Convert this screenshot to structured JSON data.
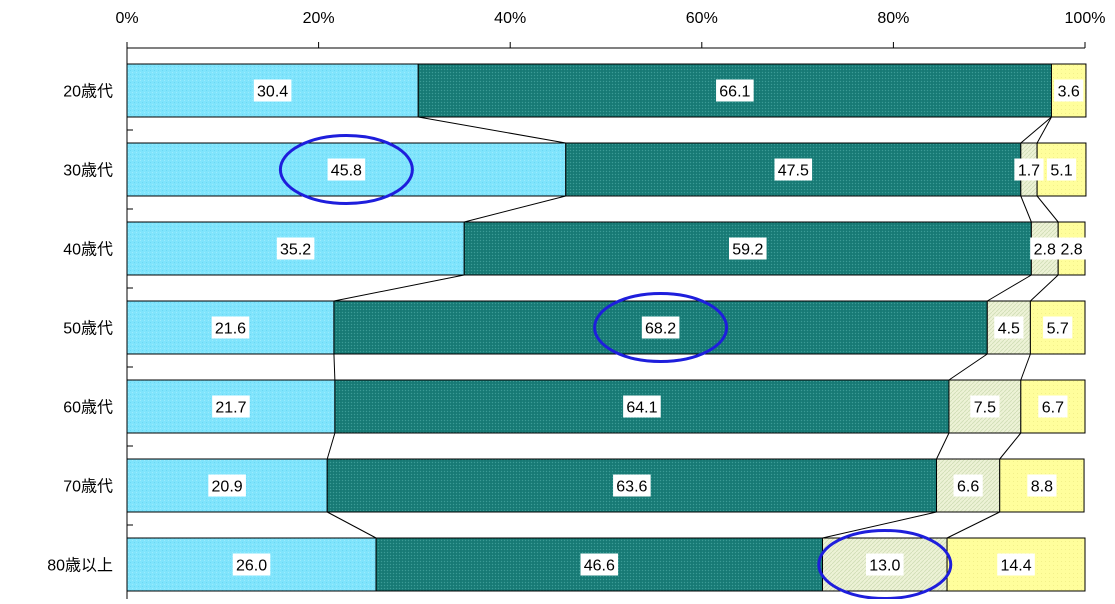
{
  "chart_data": {
    "type": "bar",
    "stacked": "percent",
    "orientation": "horizontal",
    "title": "",
    "xlabel": "",
    "ylabel": "",
    "xlim": [
      0,
      100
    ],
    "x_ticks": [
      "0%",
      "20%",
      "40%",
      "60%",
      "80%",
      "100%"
    ],
    "x_axis_position": "top",
    "grid": false,
    "legend": "none",
    "categories": [
      "20歳代",
      "30歳代",
      "40歳代",
      "50歳代",
      "60歳代",
      "70歳代",
      "80歳以上"
    ],
    "series": [
      {
        "values": [
          30.4,
          45.8,
          35.2,
          21.6,
          21.7,
          20.9,
          26.0
        ],
        "color": "#80E4FC"
      },
      {
        "values": [
          66.1,
          47.5,
          59.2,
          68.2,
          64.1,
          63.6,
          46.6
        ],
        "color": "#1A7F7A"
      },
      {
        "values": [
          0.0,
          1.7,
          2.8,
          4.5,
          7.5,
          6.6,
          13.0
        ],
        "color": "#EDF2D6"
      },
      {
        "values": [
          3.6,
          5.1,
          2.8,
          5.7,
          6.7,
          8.8,
          14.4
        ],
        "color": "#FFFE9C"
      }
    ],
    "highlights": [
      {
        "category": "30歳代",
        "series_index": 0,
        "value": 45.8,
        "color": "#1E1EDC"
      },
      {
        "category": "50歳代",
        "series_index": 1,
        "value": 68.2,
        "color": "#1E1EDC"
      },
      {
        "category": "80歳以上",
        "series_index": 2,
        "value": 13.0,
        "color": "#1E1EDC"
      }
    ]
  }
}
